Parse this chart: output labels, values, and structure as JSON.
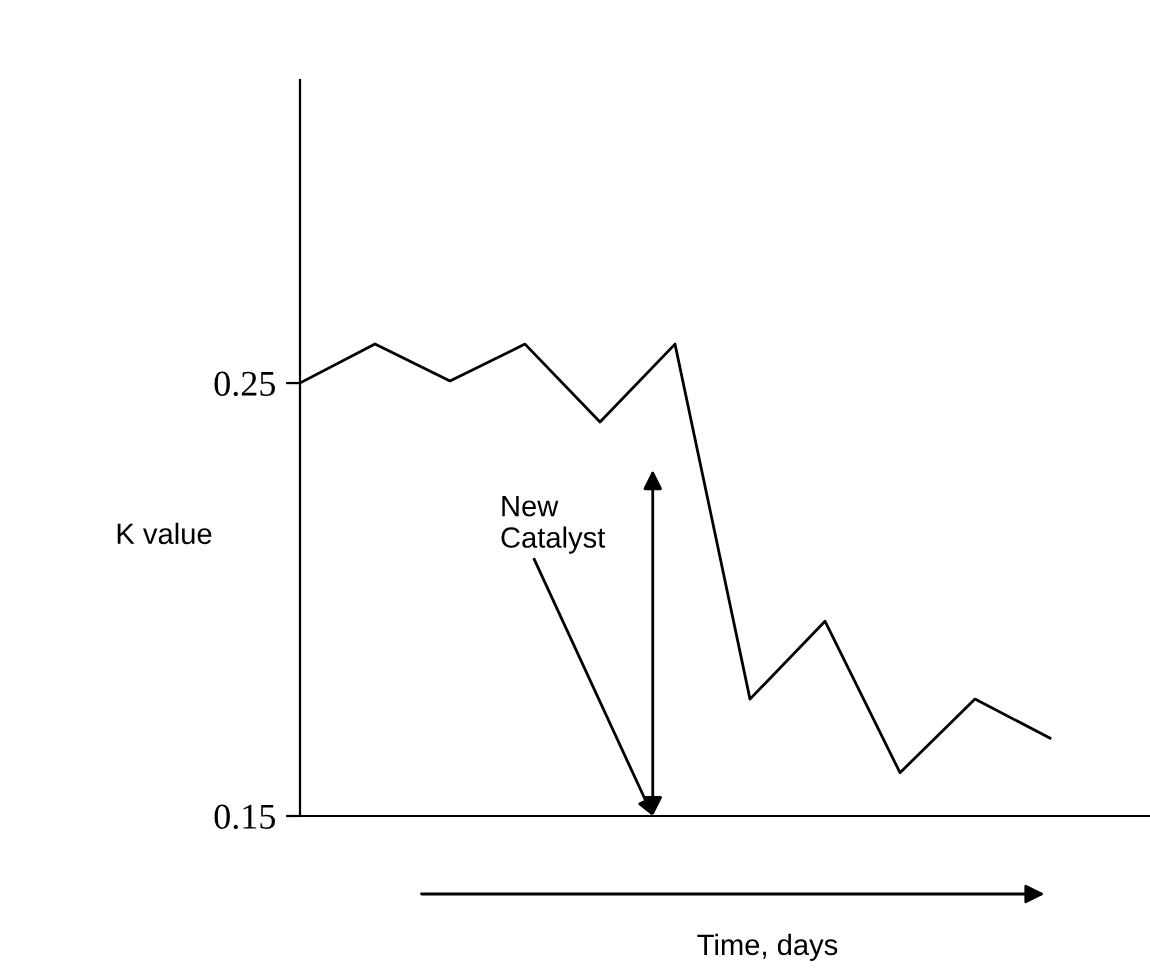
{
  "chart_data": {
    "type": "line",
    "categories": [
      null,
      null,
      null,
      null,
      null,
      null,
      null,
      null,
      null,
      null,
      null
    ],
    "series": [
      {
        "color": "#000000",
        "values": [
          0.25,
          0.259,
          0.2505,
          0.259,
          0.241,
          0.259,
          0.177,
          0.195,
          0.16,
          0.177,
          0.168
        ]
      }
    ],
    "ylim": [
      0.15,
      0.32
    ],
    "yticks": [
      0.15,
      0.25
    ],
    "tick_labels": "y",
    "marker": "none",
    "line_style": "solid",
    "xlabel": "Time, days",
    "ylabel": "K value",
    "annotations": [
      "New Catalyst"
    ]
  }
}
